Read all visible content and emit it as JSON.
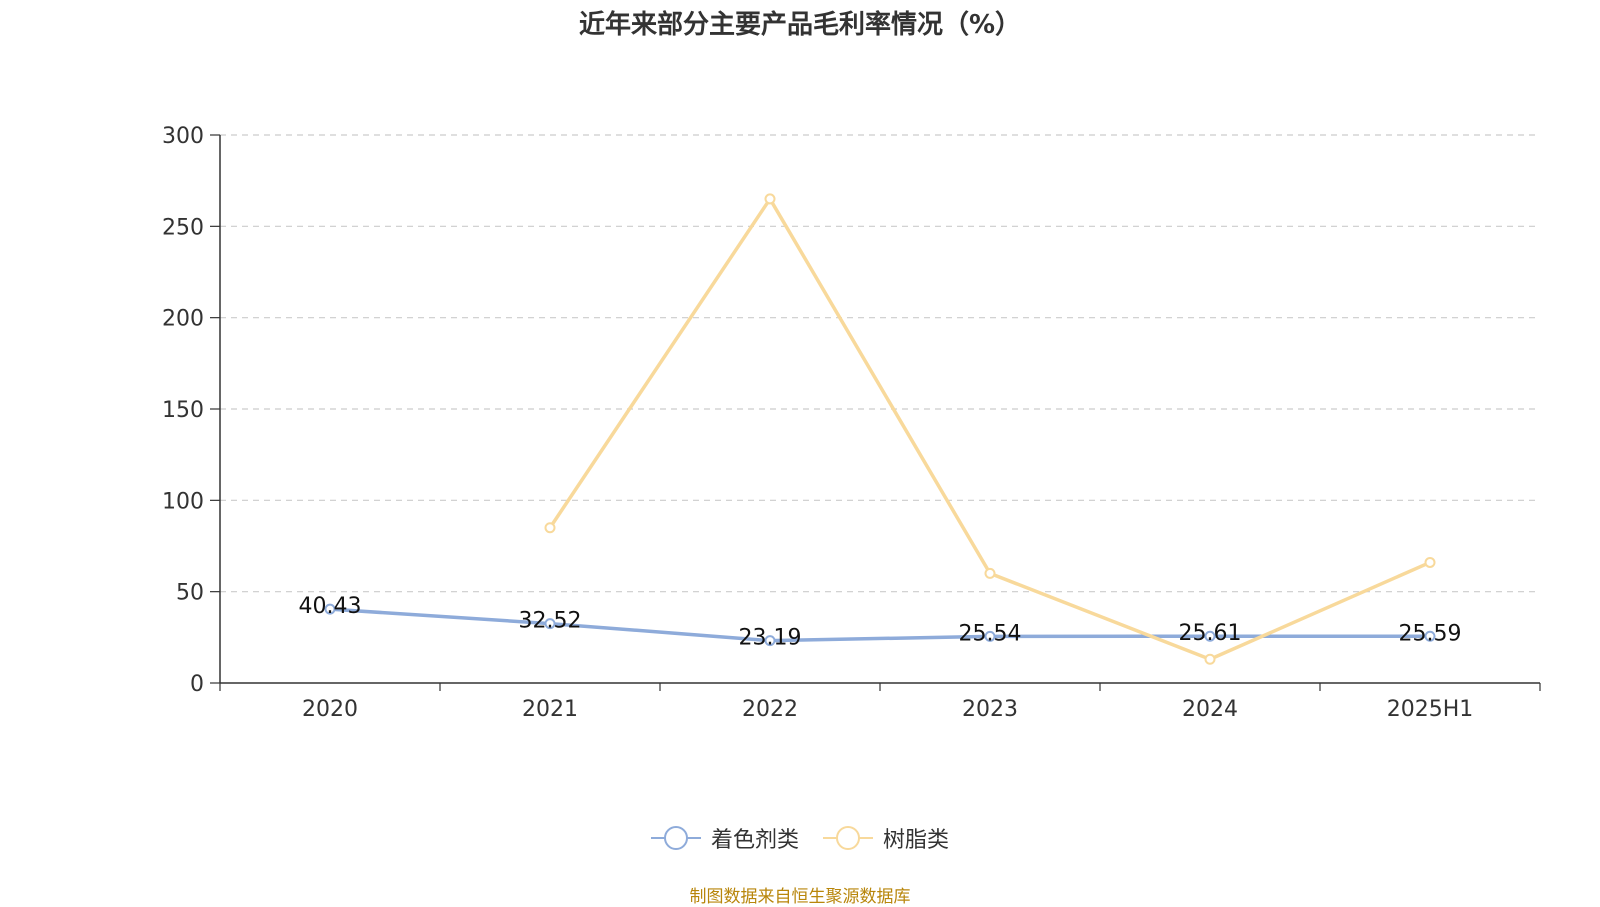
{
  "chart_data": {
    "type": "line",
    "title": "近年来部分主要产品毛利率情况（%）",
    "categories": [
      "2020",
      "2021",
      "2022",
      "2023",
      "2024",
      "2025H1"
    ],
    "ylim": [
      0,
      300
    ],
    "yticks": [
      0,
      50,
      100,
      150,
      200,
      250,
      300
    ],
    "grid": true,
    "legend_position": "bottom",
    "series": [
      {
        "name": "着色剂类",
        "color": "#8eabda",
        "values": [
          40.43,
          32.52,
          23.19,
          25.54,
          25.61,
          25.59
        ],
        "labels": [
          "40.43",
          "32.52",
          "23.19",
          "25.54",
          "25.61",
          "25.59"
        ]
      },
      {
        "name": "树脂类",
        "color": "#f8d99b",
        "values": [
          null,
          85,
          265,
          60,
          13,
          66
        ],
        "labels": []
      }
    ]
  },
  "source": "制图数据来自恒生聚源数据库"
}
